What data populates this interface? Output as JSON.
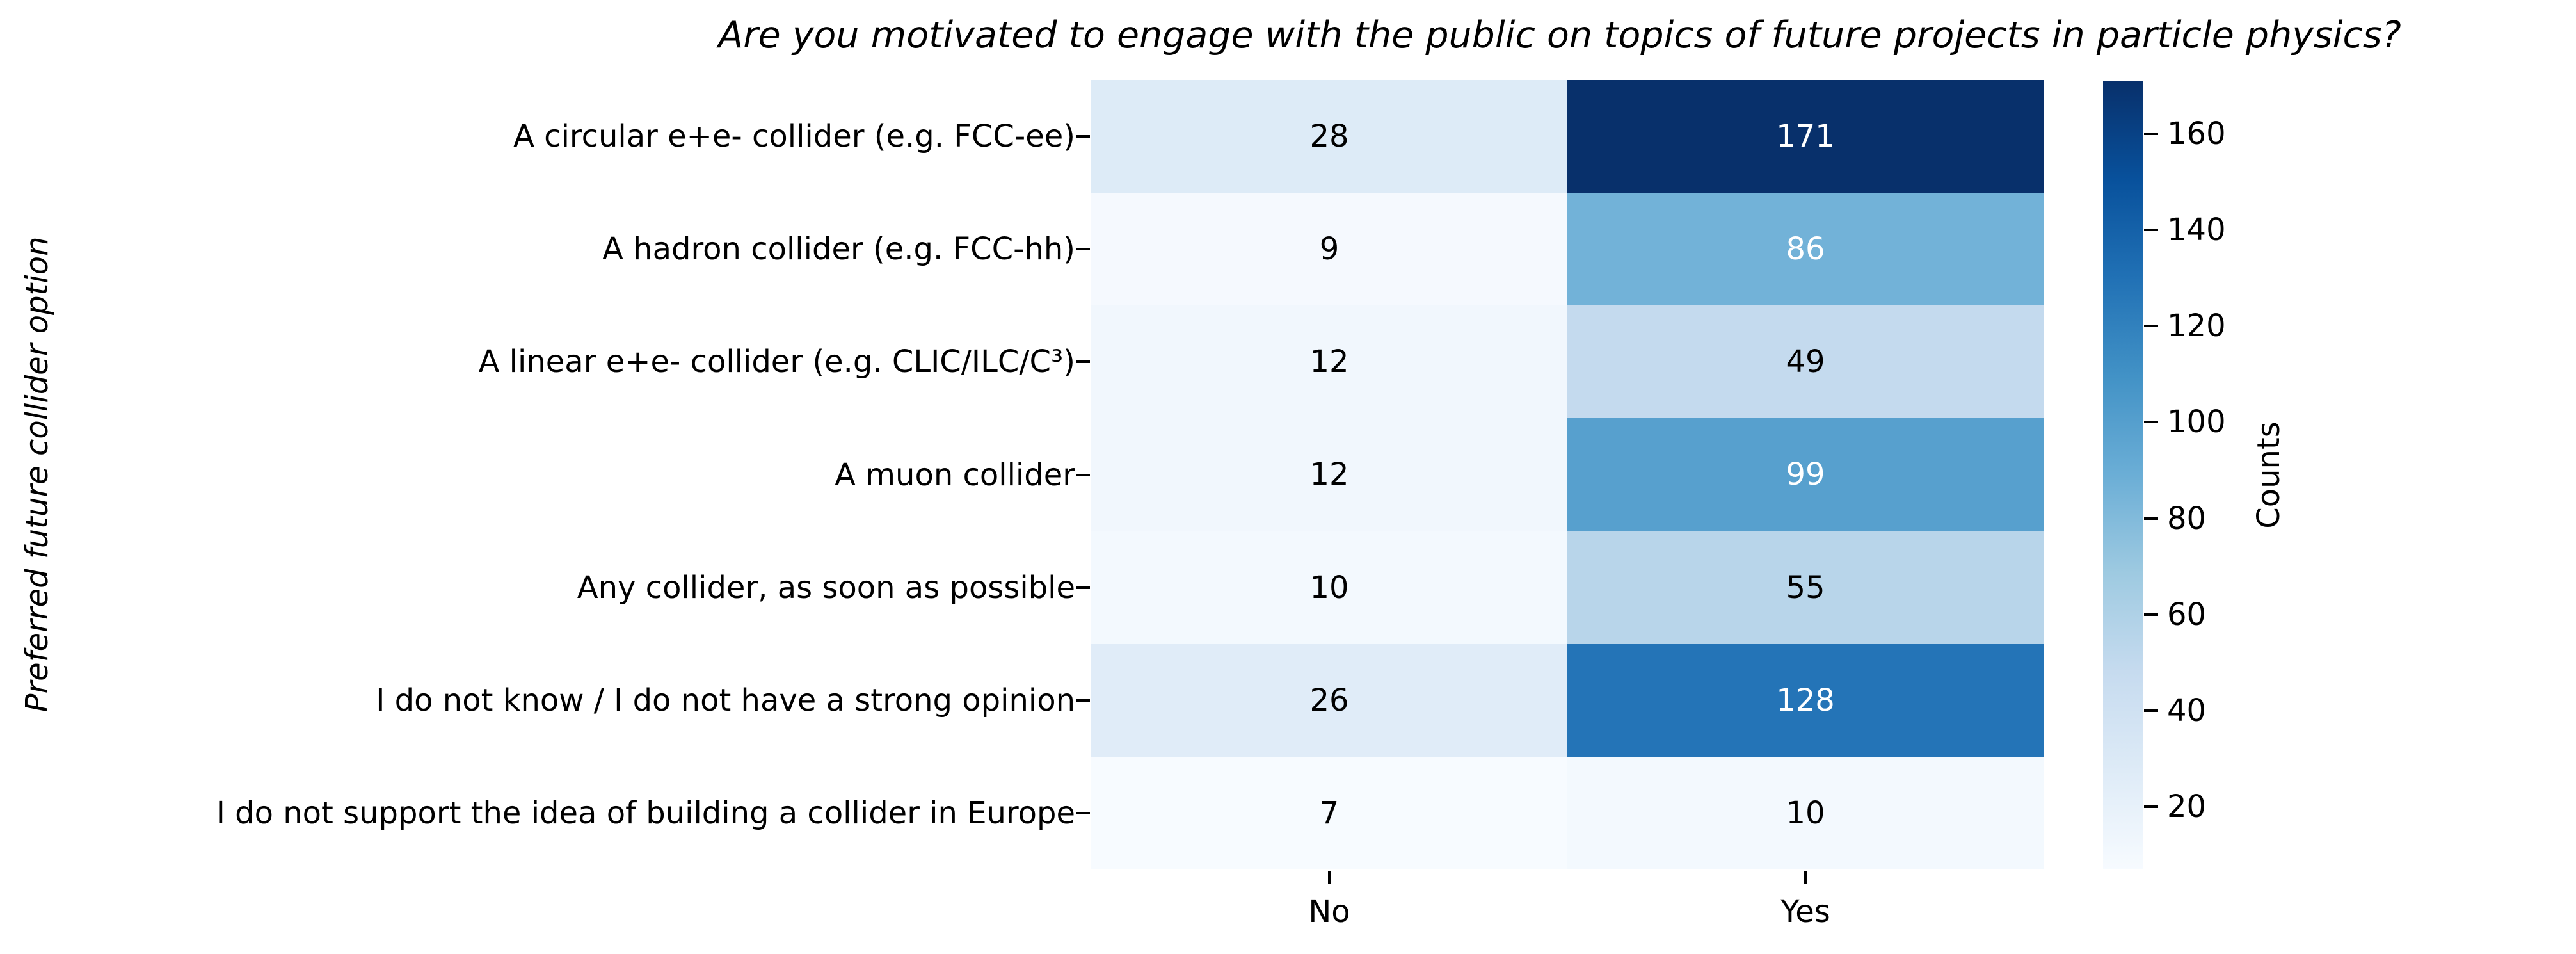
{
  "chart_data": {
    "type": "heatmap",
    "title": "Are you motivated to engage with the public on topics of future projects in particle physics?",
    "ylabel": "Preferred future collider option",
    "xlabel": "",
    "columns": [
      "No",
      "Yes"
    ],
    "rows": [
      "A circular e+e- collider (e.g. FCC-ee)",
      "A hadron collider (e.g. FCC-hh)",
      "A linear e+e- collider (e.g. CLIC/ILC/C³)",
      "A muon collider",
      "Any collider, as soon as possible",
      "I do not know / I do not have a strong opinion",
      "I do not support the idea of building a collider in Europe"
    ],
    "values": [
      [
        28,
        171
      ],
      [
        9,
        86
      ],
      [
        12,
        49
      ],
      [
        12,
        99
      ],
      [
        10,
        55
      ],
      [
        26,
        128
      ],
      [
        7,
        10
      ]
    ],
    "cell_colors": [
      [
        "#ddebf7",
        "#08306b"
      ],
      [
        "#f5f9fe",
        "#72b2d8"
      ],
      [
        "#f1f7fd",
        "#c4daee"
      ],
      [
        "#f1f7fd",
        "#57a0ce"
      ],
      [
        "#f3f9fe",
        "#b8d5ea"
      ],
      [
        "#e0ecf8",
        "#2474b7"
      ],
      [
        "#f7fbff",
        "#f3f9fe"
      ]
    ],
    "cell_text_colors": [
      [
        "#000000",
        "#ffffff"
      ],
      [
        "#000000",
        "#ffffff"
      ],
      [
        "#000000",
        "#000000"
      ],
      [
        "#000000",
        "#ffffff"
      ],
      [
        "#000000",
        "#000000"
      ],
      [
        "#000000",
        "#ffffff"
      ],
      [
        "#000000",
        "#000000"
      ]
    ],
    "grid": false,
    "legend_position": "right-colorbar",
    "colormap": "Blues",
    "colorbar": {
      "label": "Counts",
      "vmin": 7,
      "vmax": 171,
      "ticks": [
        20,
        40,
        60,
        80,
        100,
        120,
        140,
        160
      ],
      "gradient_stops": [
        "#f7fbff",
        "#deebf7",
        "#c6dbef",
        "#9ecae1",
        "#6baed6",
        "#4292c6",
        "#2171b5",
        "#08519c",
        "#08306b"
      ]
    }
  }
}
